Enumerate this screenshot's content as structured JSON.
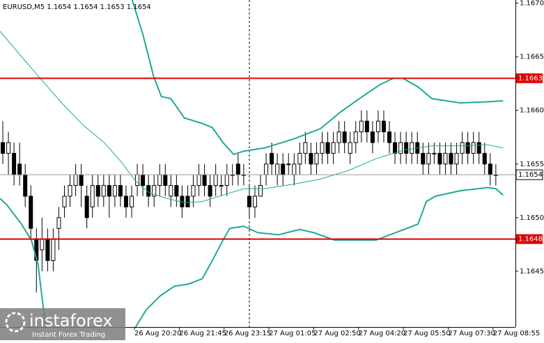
{
  "chart_data": {
    "type": "candlestick",
    "title": "EURUSD,M5  1.1654 1.1654 1.1653 1.1654",
    "xlim": [
      0,
      92
    ],
    "ylim": [
      1.16398,
      1.16703
    ],
    "yticks": [
      {
        "value": 1.167,
        "label": "1.1670"
      },
      1.1665,
      {
        "value": 1.166,
        "label": "1.1660"
      },
      1.1655,
      {
        "value": 1.165,
        "label": "1.1650"
      },
      1.1645
    ],
    "xticks": [
      {
        "value": 24,
        "label": "26 Aug 20:20"
      },
      {
        "value": 32,
        "label": "26 Aug 21:45"
      },
      {
        "value": 40,
        "label": "26 Aug 23:15"
      },
      {
        "value": 48,
        "label": "27 Aug 01:05"
      },
      {
        "value": 56,
        "label": "27 Aug 02:50"
      },
      {
        "value": 64,
        "label": "27 Aug 04:20"
      },
      {
        "value": 72,
        "label": "27 Aug 05:50"
      },
      {
        "value": 80,
        "label": "27 Aug 07:30"
      },
      {
        "value": 88,
        "label": "27 Aug 08:55"
      }
    ],
    "open": [
      1.1657,
      1.1656,
      1.1656,
      1.1655,
      1.1654,
      1.1652,
      1.1648,
      1.1647,
      1.1648,
      1.1646,
      1.1649,
      1.1651,
      1.1652,
      1.1653,
      1.1654,
      1.1652,
      1.1651,
      1.1653,
      1.1652,
      1.1653,
      1.1652,
      1.1653,
      1.1652,
      1.1651,
      1.1653,
      1.1654,
      1.1653,
      1.1652,
      1.1653,
      1.1654,
      1.1652,
      1.1653,
      1.1652,
      1.1652,
      1.1652,
      1.1653,
      1.1654,
      1.1653,
      1.1653,
      1.1653,
      1.1653,
      1.1654,
      1.1655,
      1.1654,
      1.1652,
      1.1651,
      1.1652,
      1.1654,
      1.1656,
      1.1654,
      1.1655,
      1.1655,
      1.1654,
      1.1655,
      1.1656,
      1.1656,
      1.1655,
      1.1656,
      1.1657,
      1.1656,
      1.1657,
      1.1658,
      1.1656,
      1.1657,
      1.1658,
      1.1659,
      1.1658,
      1.1658,
      1.1659,
      1.1658,
      1.1657,
      1.1656,
      1.1657,
      1.1656,
      1.1657,
      1.1656,
      1.1655,
      1.1656,
      1.1656,
      1.1655,
      1.1656,
      1.1655,
      1.1656,
      1.1657,
      1.1656,
      1.1657,
      1.1656,
      1.1655,
      1.1654
    ],
    "high": [
      1.1659,
      1.1658,
      1.1657,
      1.1657,
      1.1655,
      1.1653,
      1.1649,
      1.165,
      1.1649,
      1.1649,
      1.1651,
      1.1653,
      1.1654,
      1.1655,
      1.1655,
      1.1653,
      1.1654,
      1.1654,
      1.1654,
      1.1654,
      1.1654,
      1.1654,
      1.1653,
      1.1653,
      1.1655,
      1.1655,
      1.1654,
      1.1654,
      1.1655,
      1.1655,
      1.1654,
      1.1654,
      1.1653,
      1.1653,
      1.1654,
      1.1655,
      1.1655,
      1.1654,
      1.1655,
      1.1654,
      1.1655,
      1.1655,
      1.1656,
      1.1655,
      1.1653,
      1.1653,
      1.1654,
      1.1656,
      1.1657,
      1.1656,
      1.1656,
      1.1656,
      1.1656,
      1.1657,
      1.1658,
      1.1657,
      1.1657,
      1.1658,
      1.1658,
      1.1658,
      1.1659,
      1.1659,
      1.1658,
      1.1659,
      1.166,
      1.166,
      1.1659,
      1.166,
      1.166,
      1.1659,
      1.1658,
      1.1658,
      1.1658,
      1.1658,
      1.1658,
      1.1657,
      1.1657,
      1.1657,
      1.1657,
      1.1657,
      1.1657,
      1.1657,
      1.1658,
      1.1658,
      1.1658,
      1.1658,
      1.1657,
      1.1656,
      1.1655
    ],
    "low": [
      1.1655,
      1.1654,
      1.1653,
      1.1653,
      1.1651,
      1.1648,
      1.1643,
      1.1645,
      1.1645,
      1.1645,
      1.1647,
      1.165,
      1.1651,
      1.1652,
      1.1651,
      1.1649,
      1.165,
      1.1651,
      1.1651,
      1.165,
      1.1651,
      1.1651,
      1.165,
      1.165,
      1.1652,
      1.1652,
      1.1651,
      1.1651,
      1.1652,
      1.1652,
      1.1651,
      1.1651,
      1.165,
      1.1651,
      1.1651,
      1.1652,
      1.1652,
      1.1651,
      1.1652,
      1.1652,
      1.1652,
      1.1653,
      1.1653,
      1.1653,
      1.165,
      1.165,
      1.1652,
      1.1653,
      1.1654,
      1.1653,
      1.1653,
      1.1654,
      1.1653,
      1.1654,
      1.1655,
      1.1654,
      1.1654,
      1.1655,
      1.1655,
      1.1655,
      1.1656,
      1.1656,
      1.1655,
      1.1656,
      1.1657,
      1.1657,
      1.1656,
      1.1657,
      1.1657,
      1.1656,
      1.1655,
      1.1655,
      1.1655,
      1.1655,
      1.1655,
      1.1654,
      1.1654,
      1.1655,
      1.1654,
      1.1654,
      1.1654,
      1.1654,
      1.1655,
      1.1655,
      1.1655,
      1.1655,
      1.1654,
      1.1653,
      1.1653
    ],
    "close": [
      1.1656,
      1.1657,
      1.1654,
      1.1654,
      1.1652,
      1.1649,
      1.1646,
      1.1648,
      1.1646,
      1.1648,
      1.165,
      1.1652,
      1.1653,
      1.1654,
      1.1653,
      1.165,
      1.1653,
      1.1652,
      1.1653,
      1.1652,
      1.1653,
      1.1652,
      1.1651,
      1.1652,
      1.1654,
      1.1653,
      1.1652,
      1.1653,
      1.1654,
      1.1653,
      1.1653,
      1.1652,
      1.1651,
      1.1651,
      1.1653,
      1.1654,
      1.1653,
      1.1652,
      1.1654,
      1.1653,
      1.1654,
      1.1654,
      1.1654,
      1.1654,
      1.1651,
      1.1652,
      1.1653,
      1.1655,
      1.1655,
      1.1655,
      1.1654,
      1.1655,
      1.1655,
      1.1656,
      1.1657,
      1.1655,
      1.1656,
      1.1657,
      1.1656,
      1.1657,
      1.1658,
      1.1657,
      1.1657,
      1.1658,
      1.1659,
      1.1658,
      1.1657,
      1.1659,
      1.1658,
      1.1657,
      1.1656,
      1.1657,
      1.1656,
      1.1657,
      1.1656,
      1.1655,
      1.1656,
      1.1656,
      1.1655,
      1.1656,
      1.1655,
      1.1656,
      1.1657,
      1.1656,
      1.1657,
      1.1656,
      1.1655,
      1.1654,
      1.1654
    ],
    "lines": [
      {
        "color": "#1fa898",
        "width": 2,
        "x": [
          23.6,
          25.5,
          27.4,
          28.8,
          30.5,
          32.9,
          36,
          37.9,
          39.8,
          41.7,
          43.5,
          47.2,
          52.2,
          57.2,
          60.9,
          64.7,
          67.8,
          70.2,
          71.9,
          74.6,
          77.1,
          82.1,
          87,
          89.8
        ],
        "values": [
          1.16703,
          1.16671,
          1.16632,
          1.16613,
          1.16611,
          1.16593,
          1.16588,
          1.16584,
          1.1657,
          1.16559,
          1.16562,
          1.16565,
          1.16573,
          1.16583,
          1.16599,
          1.16613,
          1.16624,
          1.1663,
          1.1663,
          1.16622,
          1.16611,
          1.16607,
          1.16608,
          1.16609
        ]
      },
      {
        "color": "#1fa898",
        "width": 1,
        "x": [
          0,
          3.7,
          7.5,
          11.2,
          14.9,
          18.6,
          21.8,
          24.2,
          26.7,
          29.8,
          32.9,
          36.1,
          39.8,
          43.5,
          47.2,
          52.2,
          57.2,
          62.2,
          67.1,
          72.1,
          77.1,
          82.1,
          87,
          89.8
        ],
        "values": [
          1.16674,
          1.16651,
          1.16628,
          1.16606,
          1.16586,
          1.1657,
          1.16551,
          1.16534,
          1.16523,
          1.16518,
          1.16514,
          1.16515,
          1.16521,
          1.16527,
          1.16527,
          1.16531,
          1.16536,
          1.16544,
          1.16555,
          1.16563,
          1.16567,
          1.16567,
          1.16568,
          1.16565
        ]
      },
      {
        "color": "#1fa898",
        "width": 2,
        "x": [
          0,
          1.2,
          3.7,
          5.6,
          6.8,
          7.7,
          8.5,
          16,
          24.2,
          26.1,
          28.6,
          31.1,
          33.6,
          36.1,
          37.9,
          39.8,
          41,
          43.5,
          46,
          49.7,
          53.5,
          56,
          59.7,
          64.7,
          67.1,
          69.6,
          72.1,
          74.6,
          76.1,
          77.7,
          82.1,
          87,
          88.5,
          89.8
        ],
        "values": [
          1.16518,
          1.16512,
          1.16495,
          1.16479,
          1.16456,
          1.16417,
          1.16386,
          null,
          1.16398,
          1.16414,
          1.16427,
          1.16436,
          1.16438,
          1.16443,
          1.1646,
          1.16479,
          1.1649,
          1.16492,
          1.16486,
          1.16484,
          1.16489,
          1.16486,
          1.16479,
          1.16479,
          1.16479,
          1.16484,
          1.16489,
          1.16494,
          1.16515,
          1.1652,
          1.16525,
          1.16528,
          1.16527,
          1.16521
        ]
      }
    ],
    "levels": [
      1.1663,
      1.1648
    ],
    "level_color": "#e00000",
    "current_price": 1.1654,
    "watermark": {
      "brand": "instaforex",
      "tagline": "Instant Forex Trading"
    }
  }
}
